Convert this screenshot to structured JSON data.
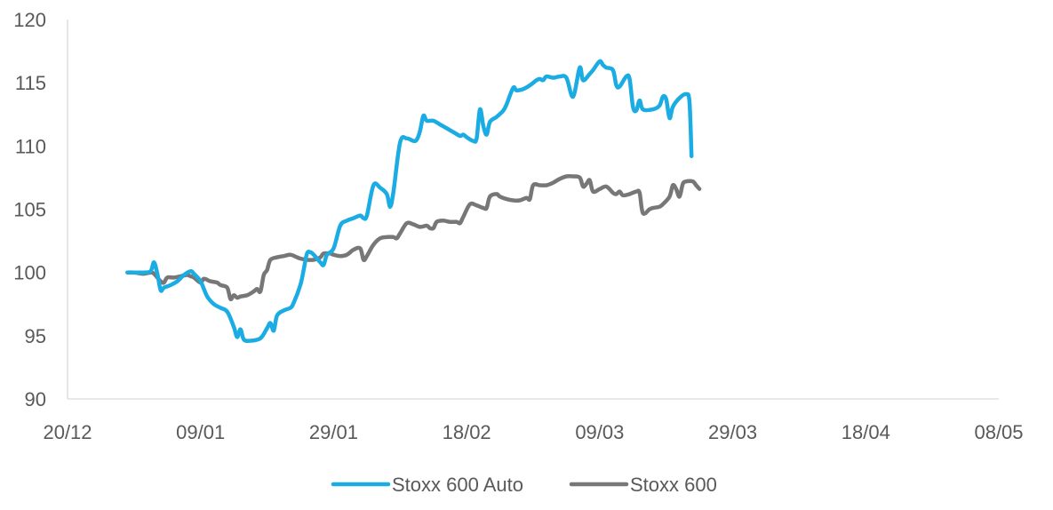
{
  "chart_data": {
    "type": "line",
    "title": "",
    "xlabel": "",
    "ylabel": "",
    "ylim": [
      90,
      120
    ],
    "yticks": [
      90,
      95,
      100,
      105,
      110,
      115,
      120
    ],
    "x_ticks": [
      "20/12",
      "09/01",
      "29/01",
      "18/02",
      "09/03",
      "29/03",
      "18/04",
      "08/05"
    ],
    "x_tick_days": [
      0,
      20,
      40,
      60,
      80,
      100,
      120,
      140
    ],
    "grid": false,
    "legend_position": "bottom",
    "series": [
      {
        "name": "Stoxx 600 Auto",
        "color": "#1aace3",
        "points": [
          [
            9,
            100
          ],
          [
            10,
            100
          ],
          [
            11.5,
            100
          ],
          [
            12.5,
            100.1
          ],
          [
            13,
            100.8
          ],
          [
            13.5,
            99.9
          ],
          [
            14,
            98.6
          ],
          [
            14.5,
            98.8
          ],
          [
            15.5,
            99
          ],
          [
            16.5,
            99.3
          ],
          [
            17.5,
            99.8
          ],
          [
            18.5,
            100.1
          ],
          [
            19,
            99.9
          ],
          [
            20,
            99.3
          ],
          [
            21,
            98.1
          ],
          [
            22,
            97.5
          ],
          [
            23,
            97.2
          ],
          [
            24,
            96.9
          ],
          [
            25,
            95.7
          ],
          [
            25.5,
            94.9
          ],
          [
            26,
            95.5
          ],
          [
            26.5,
            94.7
          ],
          [
            27.5,
            94.6
          ],
          [
            29,
            94.8
          ],
          [
            30,
            95.6
          ],
          [
            30.5,
            96
          ],
          [
            31,
            95.4
          ],
          [
            31.5,
            96.6
          ],
          [
            32.5,
            97
          ],
          [
            33.5,
            97.2
          ],
          [
            34,
            97.6
          ],
          [
            35,
            99
          ],
          [
            35.5,
            100.2
          ],
          [
            36,
            101.5
          ],
          [
            36.5,
            101.6
          ],
          [
            37,
            101.4
          ],
          [
            38,
            100.8
          ],
          [
            38.5,
            100.6
          ],
          [
            39,
            101.4
          ],
          [
            40,
            101.9
          ],
          [
            41,
            103.7
          ],
          [
            42,
            104.1
          ],
          [
            43,
            104.3
          ],
          [
            44,
            104.5
          ],
          [
            44.5,
            104.3
          ],
          [
            45,
            104.5
          ],
          [
            46,
            106.9
          ],
          [
            47,
            106.7
          ],
          [
            48,
            106.2
          ],
          [
            48.5,
            105.2
          ],
          [
            49,
            106.4
          ],
          [
            50,
            110.3
          ],
          [
            51,
            110.6
          ],
          [
            52,
            110.4
          ],
          [
            52.5,
            110.5
          ],
          [
            53,
            111.2
          ],
          [
            53.5,
            112.4
          ],
          [
            54,
            112
          ],
          [
            55,
            112
          ],
          [
            56,
            111.7
          ],
          [
            57,
            111.4
          ],
          [
            58,
            111.1
          ],
          [
            59,
            110.8
          ],
          [
            59.5,
            110.9
          ],
          [
            60,
            110.7
          ],
          [
            61,
            110.4
          ],
          [
            61.5,
            110.6
          ],
          [
            62,
            112.9
          ],
          [
            62.5,
            111.6
          ],
          [
            63,
            110.9
          ],
          [
            63.5,
            111.9
          ],
          [
            64.5,
            112.3
          ],
          [
            65.5,
            112.8
          ],
          [
            66,
            113.3
          ],
          [
            67,
            114.6
          ],
          [
            67.5,
            114.4
          ],
          [
            68.5,
            114.5
          ],
          [
            69.5,
            114.8
          ],
          [
            70.5,
            115.2
          ],
          [
            71,
            115.3
          ],
          [
            71.5,
            115.2
          ],
          [
            72,
            115.5
          ],
          [
            73,
            115.4
          ],
          [
            74,
            115.5
          ],
          [
            75,
            115.4
          ],
          [
            76,
            113.9
          ],
          [
            77,
            116.2
          ],
          [
            77.5,
            115.2
          ],
          [
            78.5,
            115.7
          ],
          [
            79,
            116
          ],
          [
            80,
            116.7
          ],
          [
            80.5,
            116.4
          ],
          [
            81,
            116.2
          ],
          [
            82,
            116
          ],
          [
            82.5,
            114.8
          ],
          [
            83,
            114.7
          ],
          [
            84,
            115.5
          ],
          [
            84.5,
            115.3
          ],
          [
            85,
            113.1
          ],
          [
            85.5,
            112.8
          ],
          [
            86,
            113.6
          ],
          [
            86.5,
            112.9
          ],
          [
            88,
            112.9
          ],
          [
            89,
            113.2
          ],
          [
            89.5,
            113.9
          ],
          [
            90,
            113.7
          ],
          [
            90.5,
            112.2
          ],
          [
            91,
            113.1
          ],
          [
            92,
            113.8
          ],
          [
            93,
            114.1
          ],
          [
            93.5,
            113.5
          ],
          [
            93.8,
            109.2
          ]
        ]
      },
      {
        "name": "Stoxx 600",
        "color": "#777777",
        "points": [
          [
            9,
            100
          ],
          [
            10,
            100
          ],
          [
            11.5,
            99.9
          ],
          [
            12.5,
            100
          ],
          [
            13,
            99.9
          ],
          [
            14,
            99.3
          ],
          [
            14.5,
            99.2
          ],
          [
            15,
            99.6
          ],
          [
            16,
            99.6
          ],
          [
            17,
            99.7
          ],
          [
            18,
            99.8
          ],
          [
            18.5,
            99.7
          ],
          [
            19,
            99.6
          ],
          [
            20,
            99.2
          ],
          [
            20.5,
            99.5
          ],
          [
            21.5,
            99.3
          ],
          [
            22.5,
            99.2
          ],
          [
            23,
            99
          ],
          [
            24,
            98.8
          ],
          [
            24.5,
            97.9
          ],
          [
            25,
            98.2
          ],
          [
            25.5,
            98
          ],
          [
            26,
            98.1
          ],
          [
            27,
            98.2
          ],
          [
            28,
            98.5
          ],
          [
            28.5,
            98.7
          ],
          [
            29,
            98.5
          ],
          [
            29.5,
            99.8
          ],
          [
            30,
            100.2
          ],
          [
            30.5,
            101
          ],
          [
            31.5,
            101.2
          ],
          [
            32.5,
            101.3
          ],
          [
            33.5,
            101.4
          ],
          [
            34.5,
            101.2
          ],
          [
            35,
            101.1
          ],
          [
            36,
            101
          ],
          [
            37,
            101
          ],
          [
            38,
            101.2
          ],
          [
            38.5,
            101.5
          ],
          [
            39.5,
            101.5
          ],
          [
            40,
            101.4
          ],
          [
            41,
            101.3
          ],
          [
            42,
            101.4
          ],
          [
            43,
            101.8
          ],
          [
            44,
            101.9
          ],
          [
            44.5,
            101
          ],
          [
            45,
            101.3
          ],
          [
            46,
            102.2
          ],
          [
            47,
            102.7
          ],
          [
            48,
            102.8
          ],
          [
            49,
            102.8
          ],
          [
            49.5,
            102.7
          ],
          [
            50,
            103.1
          ],
          [
            51,
            103.9
          ],
          [
            52,
            103.8
          ],
          [
            53,
            103.6
          ],
          [
            54,
            103.7
          ],
          [
            54.5,
            103.5
          ],
          [
            55,
            103.5
          ],
          [
            55.5,
            104
          ],
          [
            56.5,
            104.1
          ],
          [
            57.5,
            104
          ],
          [
            58.5,
            104
          ],
          [
            59,
            103.9
          ],
          [
            59.5,
            104.4
          ],
          [
            60.5,
            105.4
          ],
          [
            61.5,
            105.3
          ],
          [
            62.5,
            105.1
          ],
          [
            63,
            105.1
          ],
          [
            63.5,
            106
          ],
          [
            64.5,
            106.2
          ],
          [
            65,
            106
          ],
          [
            66,
            105.8
          ],
          [
            67,
            105.7
          ],
          [
            68,
            105.7
          ],
          [
            69,
            105.9
          ],
          [
            69.5,
            105.8
          ],
          [
            70,
            106.9
          ],
          [
            71,
            106.9
          ],
          [
            72,
            106.9
          ],
          [
            73,
            107.1
          ],
          [
            74,
            107.4
          ],
          [
            75,
            107.6
          ],
          [
            76,
            107.6
          ],
          [
            77,
            107.5
          ],
          [
            77.5,
            106.8
          ],
          [
            78,
            107
          ],
          [
            78.5,
            107.3
          ],
          [
            79,
            106.4
          ],
          [
            80,
            106.6
          ],
          [
            81,
            106.8
          ],
          [
            82,
            106.3
          ],
          [
            82.5,
            106.2
          ],
          [
            83,
            106.4
          ],
          [
            83.5,
            106.1
          ],
          [
            84.5,
            106.2
          ],
          [
            85.5,
            106.4
          ],
          [
            86,
            106.3
          ],
          [
            86.5,
            104.7
          ],
          [
            87.5,
            105
          ],
          [
            88,
            105.1
          ],
          [
            89,
            105.2
          ],
          [
            89.5,
            105.4
          ],
          [
            90.5,
            106
          ],
          [
            91,
            106.9
          ],
          [
            91.5,
            106.6
          ],
          [
            92,
            106
          ],
          [
            92.5,
            107
          ],
          [
            93,
            107.2
          ],
          [
            94,
            107.2
          ],
          [
            94.5,
            106.9
          ],
          [
            95,
            106.6
          ]
        ]
      }
    ]
  }
}
